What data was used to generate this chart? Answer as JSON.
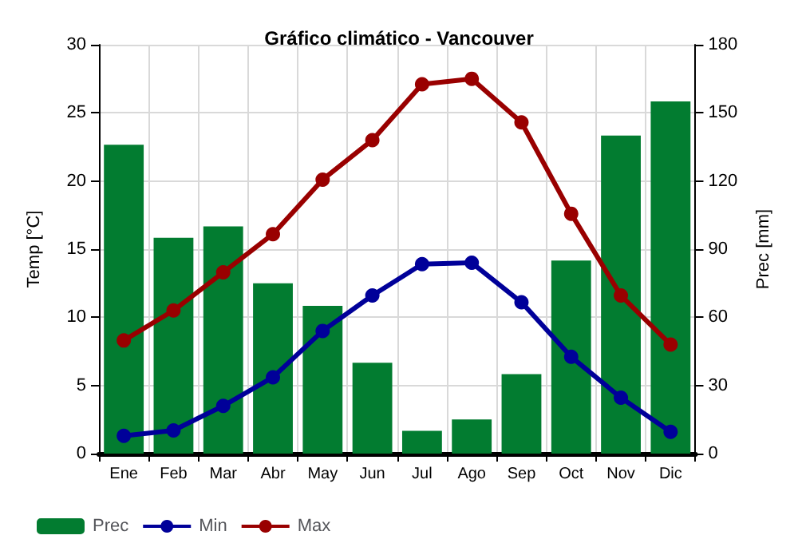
{
  "chart_data": {
    "type": "line",
    "title": "Gráfico climático - Vancouver",
    "ylabel": "Temp [°C]",
    "y2label": "Prec [mm]",
    "categories": [
      "Ene",
      "Feb",
      "Mar",
      "Abr",
      "May",
      "Jun",
      "Jul",
      "Ago",
      "Sep",
      "Oct",
      "Nov",
      "Dic"
    ],
    "series": [
      {
        "name": "Prec",
        "type": "bar",
        "axis": "y2",
        "color": "#027c30",
        "values": [
          136,
          95,
          100,
          75,
          65,
          40,
          10,
          15,
          35,
          85,
          140,
          155
        ]
      },
      {
        "name": "Min",
        "color": "#000099",
        "values": [
          1.3,
          1.7,
          3.5,
          5.6,
          9.0,
          11.6,
          13.9,
          14.0,
          11.1,
          7.1,
          4.1,
          1.6
        ]
      },
      {
        "name": "Max",
        "color": "#990000",
        "values": [
          8.3,
          10.5,
          13.3,
          16.1,
          20.1,
          23.0,
          27.1,
          27.5,
          24.3,
          17.6,
          11.6,
          8.0
        ]
      }
    ],
    "ylim": [
      0,
      30
    ],
    "yticks": [
      0,
      5,
      10,
      15,
      20,
      25,
      30
    ],
    "y2lim": [
      0,
      180
    ],
    "y2ticks": [
      0,
      30,
      60,
      90,
      120,
      150,
      180
    ],
    "grid": true,
    "legend": "bottom left",
    "marker": "circle",
    "line_style": "solid"
  }
}
